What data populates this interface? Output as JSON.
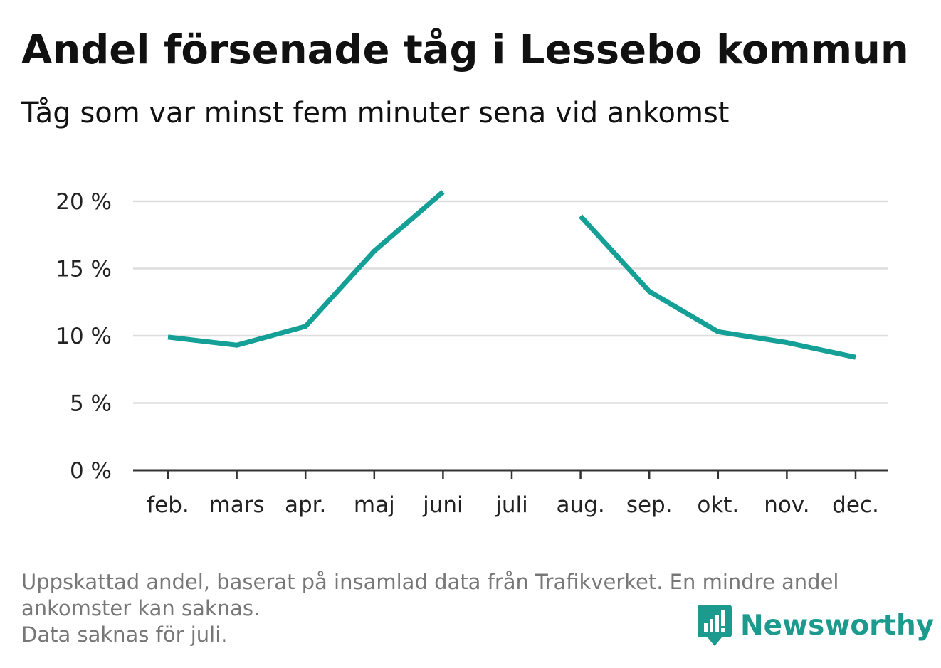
{
  "title": "Andel försenade tåg i Lessebo kommun",
  "subtitle": "Tåg som var minst fem minuter sena vid ankomst",
  "footnote": {
    "line1": "Uppskattad andel, baserat på insamlad data från Trafikverket. En mindre andel ankomster kan saknas.",
    "line2": "Data saknas för juli."
  },
  "brand": {
    "name": "Newsworthy",
    "icon": "newsworthy-logo-icon",
    "color": "#1c9a8e"
  },
  "chart_data": {
    "type": "line",
    "categories": [
      "feb.",
      "mars",
      "apr.",
      "maj",
      "juni",
      "juli",
      "aug.",
      "sep.",
      "okt.",
      "nov.",
      "dec."
    ],
    "series": [
      {
        "values": [
          9.9,
          9.3,
          10.7,
          16.3,
          20.7,
          null,
          18.9,
          13.3,
          10.3,
          9.5,
          8.4
        ],
        "color": "#14a096"
      }
    ],
    "y_ticks": [
      {
        "value": 0,
        "label": "0 %"
      },
      {
        "value": 5,
        "label": "5 %"
      },
      {
        "value": 10,
        "label": "10 %"
      },
      {
        "value": 15,
        "label": "15 %"
      },
      {
        "value": 20,
        "label": "20 %"
      }
    ],
    "ylim": [
      0,
      20
    ],
    "grid": true,
    "legend": "none"
  }
}
